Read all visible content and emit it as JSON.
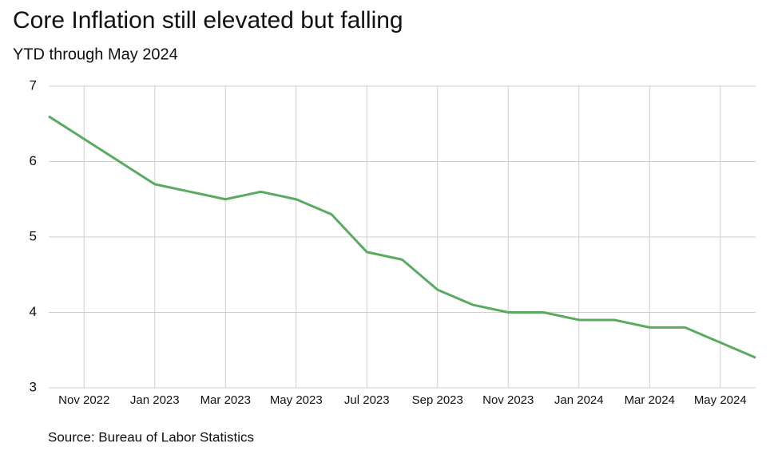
{
  "chart_data": {
    "type": "line",
    "title": "Core Inflation still elevated but falling",
    "subtitle": "YTD through May 2024",
    "source": "Source: Bureau of Labor Statistics",
    "categories": [
      null,
      "Nov 2022",
      null,
      "Jan 2023",
      null,
      "Mar 2023",
      null,
      "May 2023",
      null,
      "Jul 2023",
      null,
      "Sep 2023",
      null,
      "Nov 2023",
      null,
      "Jan 2024",
      null,
      "Mar 2024",
      null,
      "May 2024",
      null
    ],
    "series": [
      {
        "color": "#5aab61",
        "values": [
          6.6,
          6.3,
          6.0,
          5.7,
          5.6,
          5.5,
          5.6,
          5.5,
          5.3,
          4.8,
          4.7,
          4.3,
          4.1,
          4.0,
          4.0,
          3.9,
          3.9,
          3.8,
          3.8,
          3.6,
          3.4
        ]
      }
    ],
    "ylim": [
      3,
      7
    ],
    "yticks": [
      3,
      4,
      5,
      6,
      7
    ],
    "grid": true
  }
}
